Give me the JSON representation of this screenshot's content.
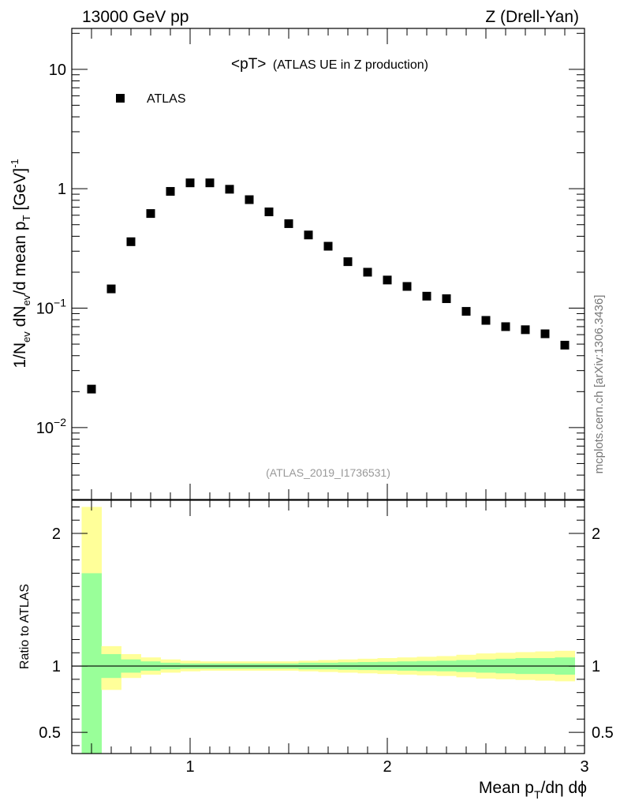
{
  "header": {
    "left": "13000 GeV pp",
    "right": "Z (Drell-Yan)"
  },
  "plot_title": {
    "main": "<pT>",
    "sub": "(ATLAS UE in Z production)"
  },
  "analysis_id": "(ATLAS_2019_I1736531)",
  "side_label": "mcplots.cern.ch [arXiv:1306.3436]",
  "upper_ylabel": {
    "prefix": "1/N",
    "sub1": "ev",
    "mid1": " dN",
    "sub2": "ev",
    "mid2": "/d mean p",
    "sub3": "T",
    "mid3": " [GeV]",
    "sup": "-1"
  },
  "lower_ylabel": "Ratio to ATLAS",
  "xlabel": {
    "prefix": "Mean p",
    "sub": "T",
    "suffix": "/dη dϕ"
  },
  "legend": [
    {
      "name": "ATLAS",
      "marker": "square",
      "color": "#000000"
    }
  ],
  "colors": {
    "band_inner": "#99ff99",
    "band_outer": "#ffff99",
    "marker": "#000000"
  },
  "chart_data": [
    {
      "type": "scatter",
      "panel": "upper",
      "yscale": "log",
      "xlim": [
        0.4,
        3.0
      ],
      "ylim": [
        0.0025,
        22
      ],
      "x_ticks": [
        1,
        2,
        3
      ],
      "y_ticks": [
        {
          "value": 10,
          "label": "10"
        },
        {
          "value": 1,
          "label": "1"
        },
        {
          "value": 0.1,
          "label": "10",
          "sup": "−1"
        },
        {
          "value": 0.01,
          "label": "10",
          "sup": "−2"
        }
      ],
      "series": [
        {
          "name": "ATLAS",
          "x": [
            0.5,
            0.6,
            0.7,
            0.8,
            0.9,
            1.0,
            1.1,
            1.2,
            1.3,
            1.4,
            1.5,
            1.6,
            1.7,
            1.8,
            1.9,
            2.0,
            2.1,
            2.2,
            2.3,
            2.4,
            2.5,
            2.6,
            2.7,
            2.8,
            2.9
          ],
          "y": [
            0.021,
            0.145,
            0.36,
            0.62,
            0.95,
            1.12,
            1.12,
            0.99,
            0.81,
            0.64,
            0.51,
            0.41,
            0.33,
            0.245,
            0.2,
            0.172,
            0.152,
            0.126,
            0.12,
            0.094,
            0.079,
            0.07,
            0.066,
            0.061,
            0.049
          ]
        }
      ]
    },
    {
      "type": "area",
      "panel": "lower",
      "xlim": [
        0.4,
        3.0
      ],
      "ylim": [
        0.34,
        2.25
      ],
      "reference_line": 1,
      "x_ticks": [
        1,
        2,
        3
      ],
      "y_ticks": [
        0.5,
        1,
        2
      ],
      "bins": [
        0.45,
        0.55,
        0.65,
        0.75,
        0.85,
        0.95,
        1.05,
        1.15,
        1.25,
        1.35,
        1.45,
        1.55,
        1.65,
        1.75,
        1.85,
        1.95,
        2.05,
        2.15,
        2.25,
        2.35,
        2.45,
        2.55,
        2.65,
        2.75,
        2.85,
        2.95
      ],
      "inner_lo": [
        0.3,
        0.91,
        0.95,
        0.965,
        0.975,
        0.98,
        0.98,
        0.98,
        0.98,
        0.98,
        0.98,
        0.975,
        0.975,
        0.972,
        0.97,
        0.968,
        0.965,
        0.962,
        0.96,
        0.955,
        0.95,
        0.945,
        0.94,
        0.94,
        0.935
      ],
      "inner_hi": [
        1.7,
        1.09,
        1.05,
        1.035,
        1.025,
        1.02,
        1.02,
        1.02,
        1.02,
        1.02,
        1.02,
        1.025,
        1.025,
        1.028,
        1.03,
        1.032,
        1.035,
        1.038,
        1.04,
        1.045,
        1.05,
        1.055,
        1.06,
        1.06,
        1.065
      ],
      "outer_lo": [
        0.3,
        0.82,
        0.91,
        0.935,
        0.95,
        0.96,
        0.965,
        0.965,
        0.965,
        0.965,
        0.965,
        0.96,
        0.955,
        0.95,
        0.945,
        0.94,
        0.935,
        0.93,
        0.925,
        0.915,
        0.905,
        0.9,
        0.895,
        0.89,
        0.885
      ],
      "outer_hi": [
        2.2,
        1.15,
        1.09,
        1.065,
        1.05,
        1.04,
        1.035,
        1.035,
        1.035,
        1.035,
        1.035,
        1.04,
        1.045,
        1.05,
        1.055,
        1.06,
        1.065,
        1.07,
        1.075,
        1.085,
        1.095,
        1.1,
        1.105,
        1.11,
        1.115
      ]
    }
  ]
}
